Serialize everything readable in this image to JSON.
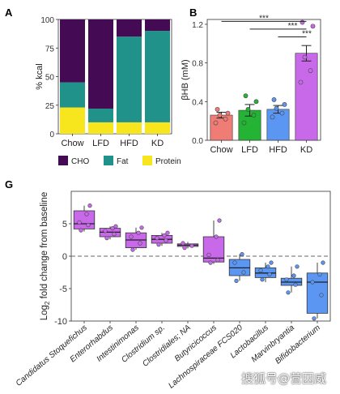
{
  "panel_labels": {
    "a": "A",
    "b": "B",
    "g": "G"
  },
  "watermark": "搜狐号@营因威",
  "chart_data": [
    {
      "type": "bar",
      "panel": "A",
      "stacked": true,
      "categories": [
        "Chow",
        "LFD",
        "HFD",
        "KD"
      ],
      "ylabel": "% kcal",
      "xlabel": "",
      "ylim": [
        0,
        100
      ],
      "yticks": [
        0,
        25,
        50,
        75,
        100
      ],
      "legend_position": "bottom",
      "dashed_separator_after": "Chow",
      "series": [
        {
          "name": "Protein",
          "color": "#f7e51e",
          "values": [
            23,
            10,
            10,
            10
          ]
        },
        {
          "name": "Fat",
          "color": "#21928a",
          "values": [
            22,
            12,
            75,
            80
          ]
        },
        {
          "name": "CHO",
          "color": "#440b54",
          "values": [
            55,
            78,
            15,
            10
          ]
        }
      ],
      "legend_order": [
        "CHO",
        "Fat",
        "Protein"
      ]
    },
    {
      "type": "bar",
      "panel": "B",
      "categories": [
        "Chow",
        "LFD",
        "HFD",
        "KD"
      ],
      "values": [
        0.26,
        0.31,
        0.32,
        0.9
      ],
      "errors": [
        0.03,
        0.06,
        0.04,
        0.08
      ],
      "colors": [
        "#f07c76",
        "#24b334",
        "#5a96f2",
        "#c869ea"
      ],
      "points": [
        [
          0.18,
          0.22,
          0.26,
          0.28,
          0.32
        ],
        [
          0.18,
          0.26,
          0.32,
          0.4,
          0.46
        ],
        [
          0.24,
          0.28,
          0.33,
          0.37,
          0.42
        ],
        [
          0.6,
          0.72,
          0.86,
          1.18,
          1.22
        ]
      ],
      "ylabel": "βHB (mM)",
      "xlabel": "",
      "ylim": [
        0,
        1.25
      ],
      "yticks": [
        "0.0",
        "0.4",
        "0.8",
        "1.2"
      ],
      "significance": [
        {
          "from": "Chow",
          "to": "KD",
          "label": "***"
        },
        {
          "from": "LFD",
          "to": "KD",
          "label": "***"
        },
        {
          "from": "HFD",
          "to": "KD",
          "label": "***"
        }
      ]
    },
    {
      "type": "box",
      "panel": "G",
      "ylabel_main": "Log",
      "ylabel_sub": "2",
      "ylabel_rest": " fold change from baseline",
      "ylim": [
        -10,
        10
      ],
      "yticks": [
        -10,
        -5,
        0,
        5
      ],
      "reference_line": 0,
      "categories": [
        {
          "name": "Candidatus Stoquefichus",
          "color": "#c869ea",
          "min": 3.8,
          "q1": 4.2,
          "median": 5.0,
          "q3": 7.0,
          "max": 7.8,
          "points": [
            4.0,
            4.8,
            5.2,
            6.5,
            7.8
          ]
        },
        {
          "name": "Enterorhabdus",
          "color": "#c869ea",
          "min": 2.6,
          "q1": 3.0,
          "median": 3.7,
          "q3": 4.3,
          "max": 4.6,
          "points": [
            2.8,
            3.4,
            3.9,
            4.3,
            4.6
          ]
        },
        {
          "name": "Intestinimonas",
          "color": "#c869ea",
          "min": 1.0,
          "q1": 1.3,
          "median": 2.5,
          "q3": 3.6,
          "max": 4.4,
          "points": [
            1.0,
            2.0,
            3.0,
            3.6,
            4.4
          ]
        },
        {
          "name": "Clostridium sp.",
          "color": "#c869ea",
          "min": 1.6,
          "q1": 2.0,
          "median": 2.6,
          "q3": 3.2,
          "max": 3.6,
          "points": [
            1.8,
            2.4,
            2.8,
            3.2,
            3.6
          ]
        },
        {
          "name": "Clostridiales; NA",
          "color": "#c869ea",
          "min": 1.2,
          "q1": 1.5,
          "median": 1.7,
          "q3": 1.9,
          "max": 2.2,
          "points": [
            1.3,
            1.6,
            2.0
          ]
        },
        {
          "name": "Butyricicoccus",
          "color": "#c869ea",
          "min": -1.2,
          "q1": -0.9,
          "median": -0.3,
          "q3": 3.0,
          "max": 5.5,
          "points": [
            -1.0,
            -0.6,
            0.2,
            3.0,
            5.5
          ]
        },
        {
          "name": "Lachnospiraceae FCS020",
          "color": "#5a96f2",
          "min": -3.8,
          "q1": -3.0,
          "median": -1.8,
          "q3": -0.5,
          "max": 0.3,
          "points": [
            -3.8,
            -2.5,
            -1.0,
            0.3
          ]
        },
        {
          "name": "Lactobacillus",
          "color": "#5a96f2",
          "min": -4.0,
          "q1": -3.3,
          "median": -2.6,
          "q3": -1.8,
          "max": -1.0,
          "points": [
            -3.6,
            -2.8,
            -2.2,
            -1.6,
            -1.0
          ]
        },
        {
          "name": "Marvinbryantia",
          "color": "#5a96f2",
          "min": -5.6,
          "q1": -4.5,
          "median": -4.0,
          "q3": -3.4,
          "max": -1.6,
          "points": [
            -5.6,
            -4.4,
            -3.6,
            -3.0,
            -1.6
          ]
        },
        {
          "name": "Bifidobacterium",
          "color": "#5a96f2",
          "min": -9.6,
          "q1": -8.8,
          "median": -4.0,
          "q3": -2.6,
          "max": -1.0,
          "points": [
            -9.6,
            -6.0,
            -4.0,
            -2.8,
            -1.0
          ]
        }
      ]
    }
  ]
}
